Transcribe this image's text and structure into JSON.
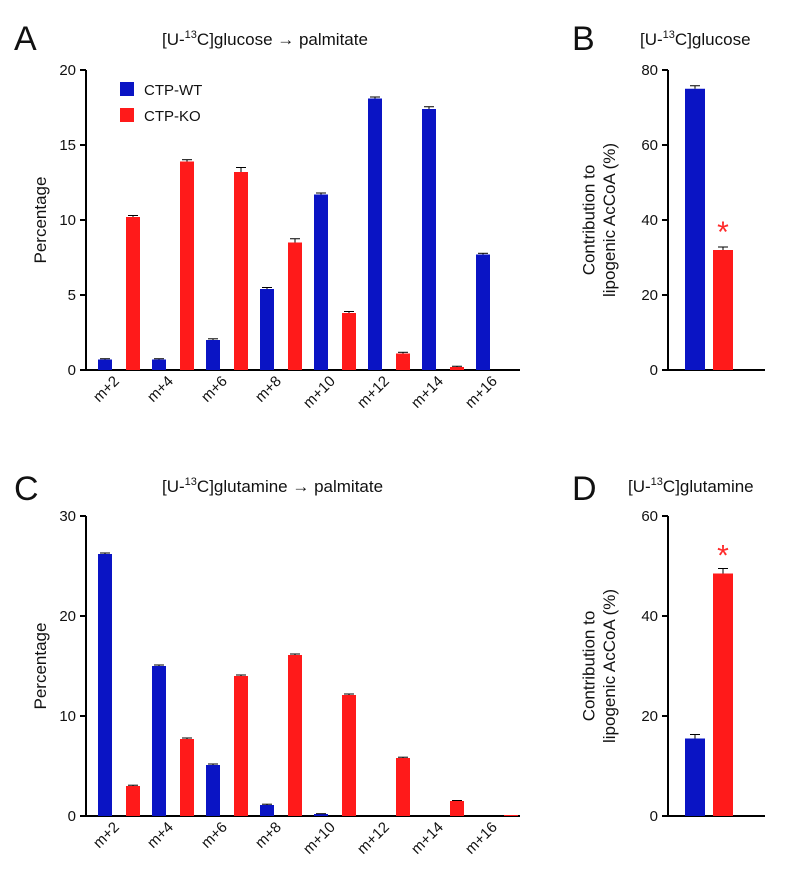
{
  "colors": {
    "wt": "#0a14c4",
    "ko": "#ff1a1a",
    "star": "#ff2a2a",
    "axis": "#000000"
  },
  "chart_data": [
    {
      "id": "A",
      "type": "bar",
      "letter": "A",
      "title": {
        "pre": "[U-",
        "sup": "13",
        "post": "C]glucose → palmitate"
      },
      "ylabel": "Percentage",
      "ylim": [
        0,
        20
      ],
      "yticks": [
        0,
        5,
        10,
        15,
        20
      ],
      "categories": [
        "m+2",
        "m+4",
        "m+6",
        "m+8",
        "m+10",
        "m+12",
        "m+14",
        "m+16"
      ],
      "legend": [
        "CTP-WT",
        "CTP-KO"
      ],
      "series": [
        {
          "name": "CTP-WT",
          "values": [
            0.7,
            0.7,
            2.0,
            5.4,
            11.7,
            18.1,
            17.4,
            7.7
          ],
          "errors": [
            0.05,
            0.05,
            0.08,
            0.1,
            0.1,
            0.1,
            0.15,
            0.08
          ]
        },
        {
          "name": "CTP-KO",
          "values": [
            10.2,
            13.9,
            13.2,
            8.5,
            3.8,
            1.1,
            0.2,
            0.0
          ],
          "errors": [
            0.1,
            0.12,
            0.3,
            0.25,
            0.1,
            0.08,
            0.05,
            0.0
          ]
        }
      ]
    },
    {
      "id": "B",
      "type": "bar",
      "letter": "B",
      "title": {
        "pre": "[U-",
        "sup": "13",
        "post": "C]glucose"
      },
      "ylabel_lines": [
        "Contribution to",
        "lipogenic AcCoA (%)"
      ],
      "ylim": [
        0,
        80
      ],
      "yticks": [
        0,
        20,
        40,
        60,
        80
      ],
      "categories": [
        "CTP-WT",
        "CTP-KO"
      ],
      "values": [
        75,
        32
      ],
      "errors": [
        0.8,
        0.8
      ],
      "significance": [
        "",
        "*"
      ]
    },
    {
      "id": "C",
      "type": "bar",
      "letter": "C",
      "title": {
        "pre": "[U-",
        "sup": "13",
        "post": "C]glutamine → palmitate"
      },
      "ylabel": "Percentage",
      "ylim": [
        0,
        30
      ],
      "yticks": [
        0,
        10,
        20,
        30
      ],
      "categories": [
        "m+2",
        "m+4",
        "m+6",
        "m+8",
        "m+10",
        "m+12",
        "m+14",
        "m+16"
      ],
      "series": [
        {
          "name": "CTP-WT",
          "values": [
            26.2,
            15.0,
            5.1,
            1.1,
            0.2,
            0.0,
            0.0,
            0.0
          ],
          "errors": [
            0.1,
            0.1,
            0.1,
            0.08,
            0.03,
            0,
            0,
            0
          ]
        },
        {
          "name": "CTP-KO",
          "values": [
            3.0,
            7.7,
            14.0,
            16.1,
            12.1,
            5.8,
            1.5,
            0.1
          ],
          "errors": [
            0.08,
            0.1,
            0.1,
            0.1,
            0.1,
            0.08,
            0.05,
            0.02
          ]
        }
      ]
    },
    {
      "id": "D",
      "type": "bar",
      "letter": "D",
      "title": {
        "pre": "[U-",
        "sup": "13",
        "post": "C]glutamine"
      },
      "ylabel_lines": [
        "Contribution to",
        "lipogenic AcCoA (%)"
      ],
      "ylim": [
        0,
        60
      ],
      "yticks": [
        0,
        20,
        40,
        60
      ],
      "categories": [
        "CTP-WT",
        "CTP-KO"
      ],
      "values": [
        15.5,
        48.5
      ],
      "errors": [
        0.8,
        1.0
      ],
      "significance": [
        "",
        "*"
      ]
    }
  ]
}
